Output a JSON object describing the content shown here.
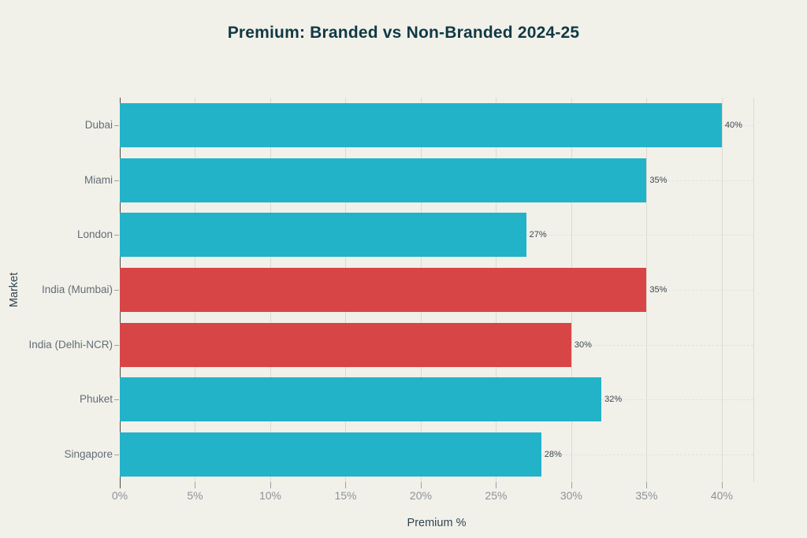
{
  "chart_data": {
    "type": "bar",
    "orientation": "horizontal",
    "title": "Premium: Branded vs Non-Branded 2024-25",
    "xlabel": "Premium %",
    "ylabel": "Market",
    "categories": [
      "Dubai",
      "Miami",
      "London",
      "India (Mumbai)",
      "India (Delhi-NCR)",
      "Phuket",
      "Singapore"
    ],
    "values": [
      40,
      35,
      27,
      35,
      30,
      32,
      28
    ],
    "bar_labels": [
      "40%",
      "35%",
      "27%",
      "35%",
      "30%",
      "32%",
      "28%"
    ],
    "bar_colors": [
      "#23b3c9",
      "#23b3c9",
      "#23b3c9",
      "#d84547",
      "#d84547",
      "#23b3c9",
      "#23b3c9"
    ],
    "x_ticks": [
      {
        "value": 0,
        "label": "0%"
      },
      {
        "value": 5,
        "label": "5%"
      },
      {
        "value": 10,
        "label": "10%"
      },
      {
        "value": 15,
        "label": "15%"
      },
      {
        "value": 20,
        "label": "20%"
      },
      {
        "value": 25,
        "label": "25%"
      },
      {
        "value": 30,
        "label": "30%"
      },
      {
        "value": 35,
        "label": "35%"
      },
      {
        "value": 40,
        "label": "40%"
      }
    ],
    "xlim": [
      0,
      42.1
    ],
    "grid": true,
    "legend": "none",
    "colors": {
      "background": "#f1f1ea",
      "branded_teal": "#23b3c9",
      "non_branded_red": "#d84547",
      "title_text": "#113944",
      "axis_title_text": "#32434e",
      "category_label_text": "#636d75",
      "tick_label_text": "#8d9298",
      "value_label_text": "#3f4650"
    }
  }
}
